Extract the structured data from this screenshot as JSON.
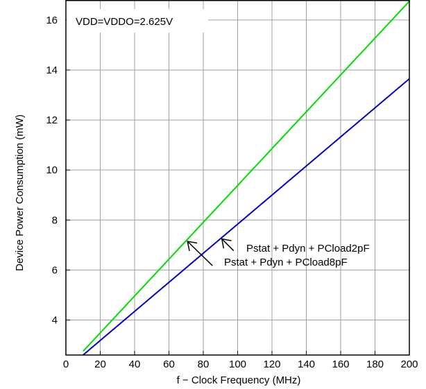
{
  "chart_data": {
    "type": "line",
    "title": "",
    "xlabel": "f − Clock Frequency (MHz)",
    "ylabel": "Device Power Consumption (mW)",
    "xlim": [
      0,
      200
    ],
    "ylim": [
      2.6,
      16.8
    ],
    "x_ticks": [
      0,
      20,
      40,
      60,
      80,
      100,
      120,
      140,
      160,
      180,
      200
    ],
    "y_ticks": [
      4,
      6,
      8,
      10,
      12,
      14,
      16
    ],
    "grid": true,
    "annotations": [
      {
        "text": "VDD=VDDO=2.625V"
      },
      {
        "text": "Pstat + Pdyn + PCload2pF",
        "target_x": 90,
        "target_y": 7.3
      },
      {
        "text": "Pstat + Pdyn + PCload8pF",
        "target_x": 70,
        "target_y": 7.2
      }
    ],
    "series": [
      {
        "color": "#00dd00",
        "x": [
          10,
          200
        ],
        "y": [
          2.75,
          16.75
        ]
      },
      {
        "color": "#0000cc",
        "x": [
          10,
          200
        ],
        "y": [
          2.6,
          13.65
        ]
      }
    ]
  }
}
